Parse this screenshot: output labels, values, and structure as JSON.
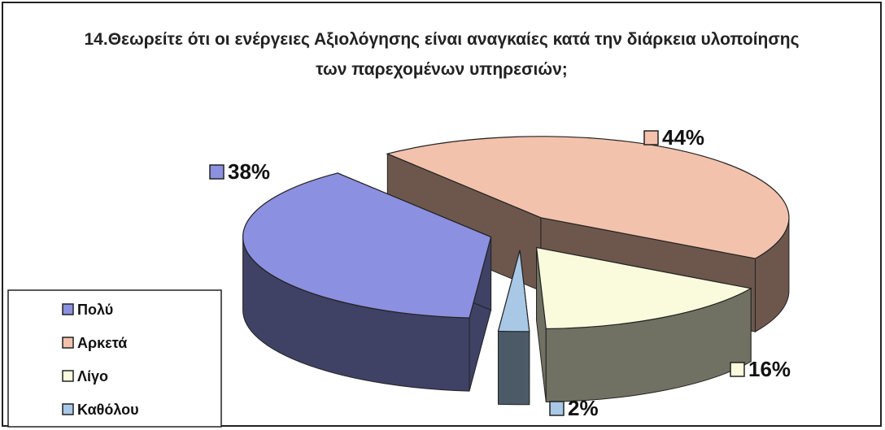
{
  "chart_data": {
    "type": "pie3d",
    "title": "14.Θεωρείτε ότι οι ενέργειες Αξιολόγησης είναι αναγκαίες κατά την διάρκεια υλοποίησης των παρεχομένων υπηρεσιών;",
    "categories": [
      "Πολύ",
      "Αρκετά",
      "Λίγο",
      "Καθόλου"
    ],
    "values": [
      38,
      44,
      16,
      2
    ],
    "value_labels": [
      "38%",
      "44%",
      "16%",
      "2%"
    ],
    "colors": [
      "#8c90e0",
      "#f2c2ac",
      "#fafadc",
      "#a8c8e6"
    ],
    "legend": "bottom-left"
  }
}
